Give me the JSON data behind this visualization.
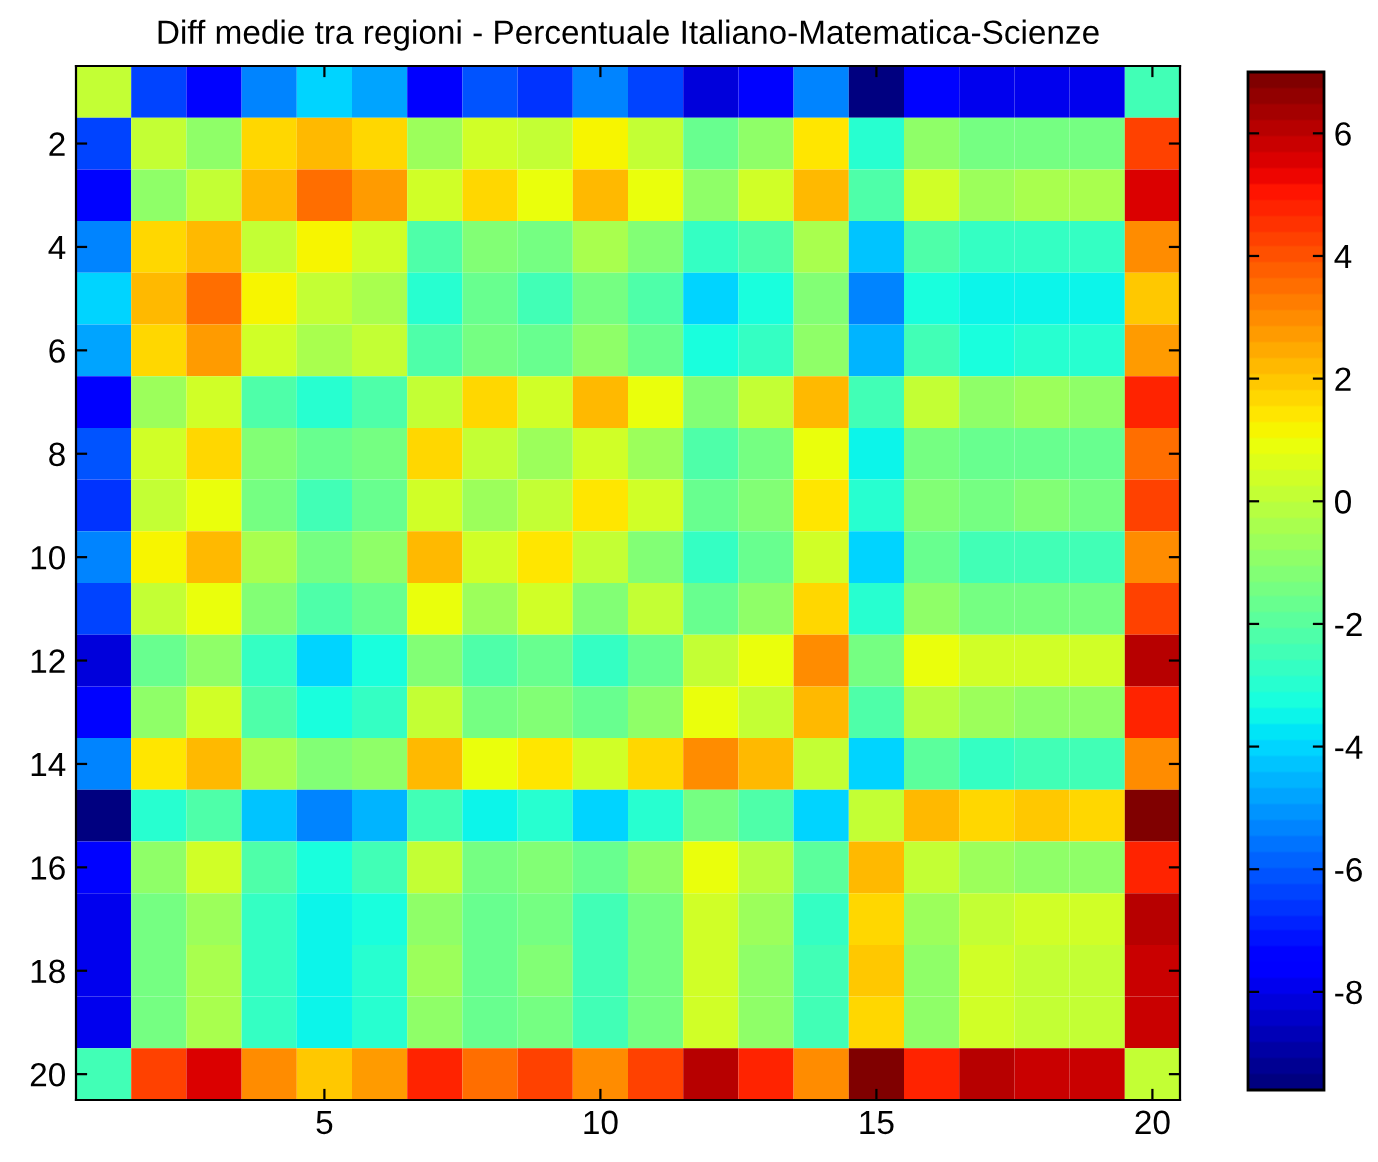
{
  "chart_data": {
    "type": "heatmap",
    "title": "Diff medie tra regioni - Percentuale Italiano-Matematica-Scienze",
    "categories": [
      null,
      null,
      null,
      null,
      "5",
      null,
      null,
      null,
      null,
      "10",
      null,
      null,
      null,
      null,
      "15",
      null,
      null,
      null,
      null,
      "20"
    ],
    "y_categories": [
      null,
      "2",
      null,
      "4",
      null,
      "6",
      null,
      "8",
      null,
      "10",
      null,
      "12",
      null,
      "14",
      null,
      "16",
      null,
      "18",
      null,
      "20"
    ],
    "cells": [
      [
        0,
        -6.4,
        -7.5,
        -5.3,
        -4.1,
        -4.8,
        -7.7,
        -6.1,
        -6.6,
        -5.4,
        -6.4,
        -8.1,
        -7.3,
        -5.4,
        -9.5,
        -7.3,
        -8.0,
        -7.8,
        -7.8,
        -2.4
      ],
      [
        -6.4,
        0,
        -0.8,
        1.6,
        2.3,
        1.7,
        -0.6,
        0.4,
        0.0,
        1.2,
        0.0,
        -1.6,
        -0.8,
        1.3,
        -2.9,
        -1.0,
        -1.3,
        -1.3,
        -1.3,
        4.2
      ],
      [
        -7.5,
        -0.8,
        0,
        2.3,
        3.4,
        2.7,
        0.3,
        1.7,
        0.8,
        2.2,
        1.0,
        -0.8,
        0.3,
        2.1,
        -2.1,
        0.3,
        -0.6,
        -0.3,
        -0.5,
        5.6
      ],
      [
        -5.3,
        1.6,
        2.3,
        0,
        1.2,
        0.3,
        -2.1,
        -1.1,
        -1.3,
        -0.3,
        -1.1,
        -2.7,
        -2.1,
        -0.3,
        -4.2,
        -2.1,
        -2.7,
        -2.6,
        -2.6,
        2.9
      ],
      [
        -4.1,
        2.3,
        3.4,
        1.2,
        0,
        -0.5,
        -2.9,
        -1.8,
        -2.4,
        -1.4,
        -2.1,
        -4.0,
        -3.2,
        -1.1,
        -5.3,
        -3.2,
        -3.6,
        -3.6,
        -3.6,
        1.9
      ],
      [
        -4.8,
        1.7,
        2.7,
        0.3,
        -0.5,
        0,
        -2.1,
        -1.4,
        -1.6,
        -0.8,
        -1.6,
        -3.2,
        -2.7,
        -0.8,
        -4.6,
        -2.4,
        -3.2,
        -3.0,
        -3.0,
        2.6
      ],
      [
        -7.7,
        -0.6,
        0.3,
        -2.1,
        -2.9,
        -2.1,
        0,
        1.6,
        0.4,
        2.1,
        0.8,
        -1.1,
        0.0,
        2.1,
        -2.4,
        0.0,
        -0.8,
        -0.6,
        -0.8,
        4.9
      ],
      [
        -6.1,
        0.4,
        1.7,
        -1.1,
        -1.8,
        -1.4,
        1.6,
        0,
        -0.6,
        0.4,
        -0.6,
        -2.1,
        -1.4,
        0.8,
        -3.4,
        -1.3,
        -1.8,
        -1.8,
        -1.8,
        3.6
      ],
      [
        -6.6,
        0.0,
        0.8,
        -1.3,
        -2.4,
        -1.6,
        0.4,
        -0.6,
        0,
        1.5,
        0.4,
        -1.6,
        -1.1,
        1.3,
        -2.9,
        -1.1,
        -1.3,
        -1.1,
        -1.3,
        4.2
      ],
      [
        -5.4,
        1.2,
        2.2,
        -0.3,
        -1.4,
        -0.8,
        2.1,
        0.4,
        1.5,
        0,
        -1.1,
        -2.7,
        -1.8,
        0.3,
        -3.9,
        -1.8,
        -2.4,
        -2.4,
        -2.4,
        3.1
      ],
      [
        -6.4,
        0.0,
        1.0,
        -1.1,
        -2.1,
        -1.6,
        0.8,
        -0.6,
        0.4,
        -1.1,
        0,
        -1.7,
        -0.8,
        1.6,
        -2.9,
        -0.8,
        -1.3,
        -1.3,
        -1.3,
        4.2
      ],
      [
        -8.1,
        -1.6,
        -0.8,
        -2.7,
        -4.0,
        -3.2,
        -1.1,
        -2.1,
        -1.6,
        -2.7,
        -1.7,
        0,
        0.8,
        2.9,
        -1.5,
        0.8,
        0.3,
        0.4,
        0.3,
        6.2
      ],
      [
        -7.3,
        -0.8,
        0.3,
        -2.1,
        -3.2,
        -2.7,
        0.0,
        -1.4,
        -1.1,
        -1.8,
        -0.8,
        0.8,
        0,
        2.2,
        -2.1,
        -0.1,
        -0.6,
        -0.8,
        -0.8,
        4.9
      ],
      [
        -5.4,
        1.3,
        2.1,
        -0.3,
        -1.1,
        -0.8,
        2.1,
        0.8,
        1.3,
        0.3,
        1.6,
        2.9,
        2.2,
        0,
        -3.9,
        -2.0,
        -2.7,
        -2.4,
        -2.4,
        3.1
      ],
      [
        -9.5,
        -2.9,
        -2.1,
        -4.2,
        -5.3,
        -4.6,
        -2.4,
        -3.4,
        -2.9,
        -3.9,
        -2.9,
        -1.5,
        -2.1,
        -3.9,
        0,
        2.2,
        1.7,
        1.9,
        1.7,
        7.0
      ],
      [
        -7.3,
        -1.0,
        0.3,
        -2.1,
        -3.2,
        -2.4,
        0.0,
        -1.3,
        -1.1,
        -1.8,
        -0.8,
        0.8,
        -0.1,
        -2.0,
        2.2,
        0,
        -0.6,
        -0.8,
        -0.8,
        4.9
      ],
      [
        -8.0,
        -1.3,
        -0.6,
        -2.7,
        -3.6,
        -3.2,
        -0.8,
        -1.8,
        -1.3,
        -2.4,
        -1.3,
        0.3,
        -0.6,
        -2.7,
        1.7,
        -0.6,
        0,
        0.3,
        0.3,
        6.2
      ],
      [
        -7.8,
        -1.3,
        -0.3,
        -2.6,
        -3.6,
        -3.0,
        -0.6,
        -1.8,
        -1.1,
        -2.4,
        -1.3,
        0.4,
        -0.8,
        -2.4,
        1.9,
        -0.8,
        0.3,
        0,
        0.1,
        5.9
      ],
      [
        -7.8,
        -1.3,
        -0.5,
        -2.6,
        -3.6,
        -3.0,
        -0.8,
        -1.8,
        -1.3,
        -2.4,
        -1.3,
        0.3,
        -0.8,
        -2.4,
        1.7,
        -0.8,
        0.3,
        0.1,
        0,
        5.9
      ],
      [
        -2.4,
        4.2,
        5.6,
        2.9,
        1.9,
        2.6,
        4.9,
        3.6,
        4.2,
        3.1,
        4.2,
        6.2,
        4.9,
        3.1,
        7.0,
        4.9,
        6.2,
        5.9,
        5.9,
        0
      ]
    ],
    "clim": [
      -9.6,
      7.0
    ],
    "cticks": [
      -8,
      -6,
      -4,
      -2,
      0,
      2,
      4,
      6
    ]
  }
}
